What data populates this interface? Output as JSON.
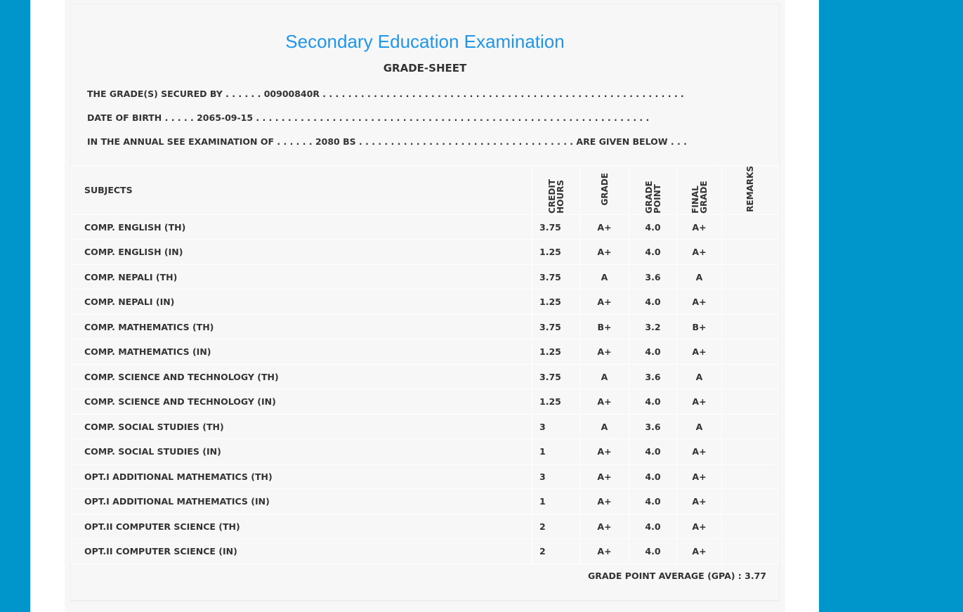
{
  "title": "Secondary Education Examination",
  "subtitle": "GRADE-SHEET",
  "lines": [
    "THE GRADE(S) SECURED BY . . . . . . 00900840R . . . . . . . . . . . . . . . . . . . . . . . . . . . . . . . . . . . . . . . . . . . . . . . . . . . . . . . . .",
    "DATE OF BIRTH . . . . . 2065-09-15 . . . . . . . . . . . . . . . . . . . . . . . . . . . . . . . . . . . . . . . . . . . . . . . . . . . . . . . . . . . . . .",
    "IN THE ANNUAL SEE EXAMINATION OF . . . . . . 2080 BS . . . . . . . . . . . . . . . . . . . . . . . . . . . . . . . . . . ARE GIVEN BELOW . . ."
  ],
  "headers": [
    "SUBJECTS",
    "CREDIT HOURS",
    "GRADE",
    "GRADE POINT",
    "FINAL GRADE",
    "REMARKS"
  ],
  "rows": [
    [
      "COMP. ENGLISH (TH)",
      "3.75",
      "A+",
      "4.0",
      "A+"
    ],
    [
      "COMP. ENGLISH (IN)",
      "1.25",
      "A+",
      "4.0",
      "A+"
    ],
    [
      "COMP. NEPALI (TH)",
      "3.75",
      "A",
      "3.6",
      "A"
    ],
    [
      "COMP. NEPALI (IN)",
      "1.25",
      "A+",
      "4.0",
      "A+"
    ],
    [
      "COMP. MATHEMATICS (TH)",
      "3.75",
      "B+",
      "3.2",
      "B+"
    ],
    [
      "COMP. MATHEMATICS (IN)",
      "1.25",
      "A+",
      "4.0",
      "A+"
    ],
    [
      "COMP. SCIENCE AND TECHNOLOGY (TH)",
      "3.75",
      "A",
      "3.6",
      "A"
    ],
    [
      "COMP. SCIENCE AND TECHNOLOGY (IN)",
      "1.25",
      "A+",
      "4.0",
      "A+"
    ],
    [
      "COMP. SOCIAL STUDIES (TH)",
      "3",
      "A",
      "3.6",
      "A"
    ],
    [
      "COMP. SOCIAL STUDIES (IN)",
      "1",
      "A+",
      "4.0",
      "A+"
    ],
    [
      "OPT.I ADDITIONAL MATHEMATICS (TH)",
      "3",
      "A+",
      "4.0",
      "A+"
    ],
    [
      "OPT.I ADDITIONAL MATHEMATICS (IN)",
      "1",
      "A+",
      "4.0",
      "A+"
    ],
    [
      "OPT.II COMPUTER SCIENCE (TH)",
      "2",
      "A+",
      "4.0",
      "A+"
    ],
    [
      "OPT.II COMPUTER SCIENCE (IN)",
      "2",
      "A+",
      "4.0",
      "A+"
    ]
  ],
  "gpa": "GRADE POINT AVERAGE (GPA) : 3.77"
}
